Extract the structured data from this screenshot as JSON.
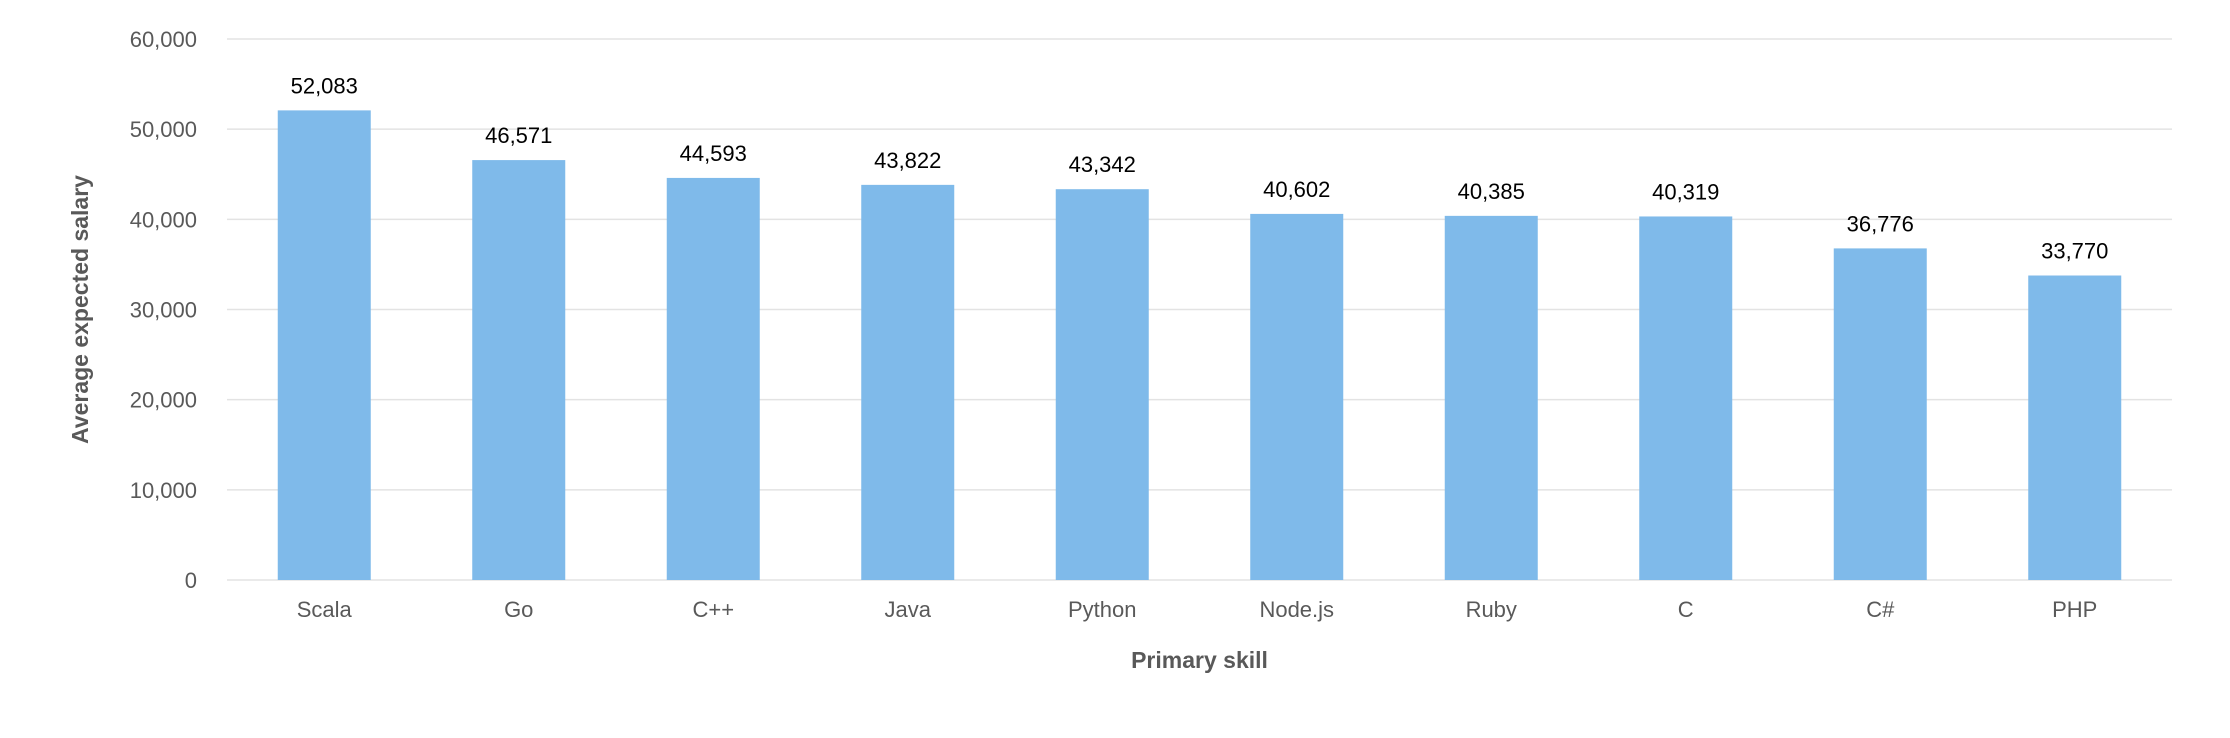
{
  "chart_data": {
    "type": "bar",
    "title": "",
    "xlabel": "Primary skill",
    "ylabel": "Average expected salary",
    "categories": [
      "Scala",
      "Go",
      "C++",
      "Java",
      "Python",
      "Node.js",
      "Ruby",
      "C",
      "C#",
      "PHP"
    ],
    "values": [
      52083,
      46571,
      44593,
      43822,
      43342,
      40602,
      40385,
      40319,
      36776,
      33770
    ],
    "data_labels": [
      "52,083",
      "46,571",
      "44,593",
      "43,822",
      "43,342",
      "40,602",
      "40,385",
      "40,319",
      "36,776",
      "33,770"
    ],
    "ylim": [
      0,
      60000
    ],
    "yticks": [
      0,
      10000,
      20000,
      30000,
      40000,
      50000,
      60000
    ],
    "ytick_labels": [
      "0",
      "10,000",
      "20,000",
      "30,000",
      "40,000",
      "50,000",
      "60,000"
    ],
    "grid": true,
    "bar_color": "#7fbaea",
    "legend": "none"
  }
}
